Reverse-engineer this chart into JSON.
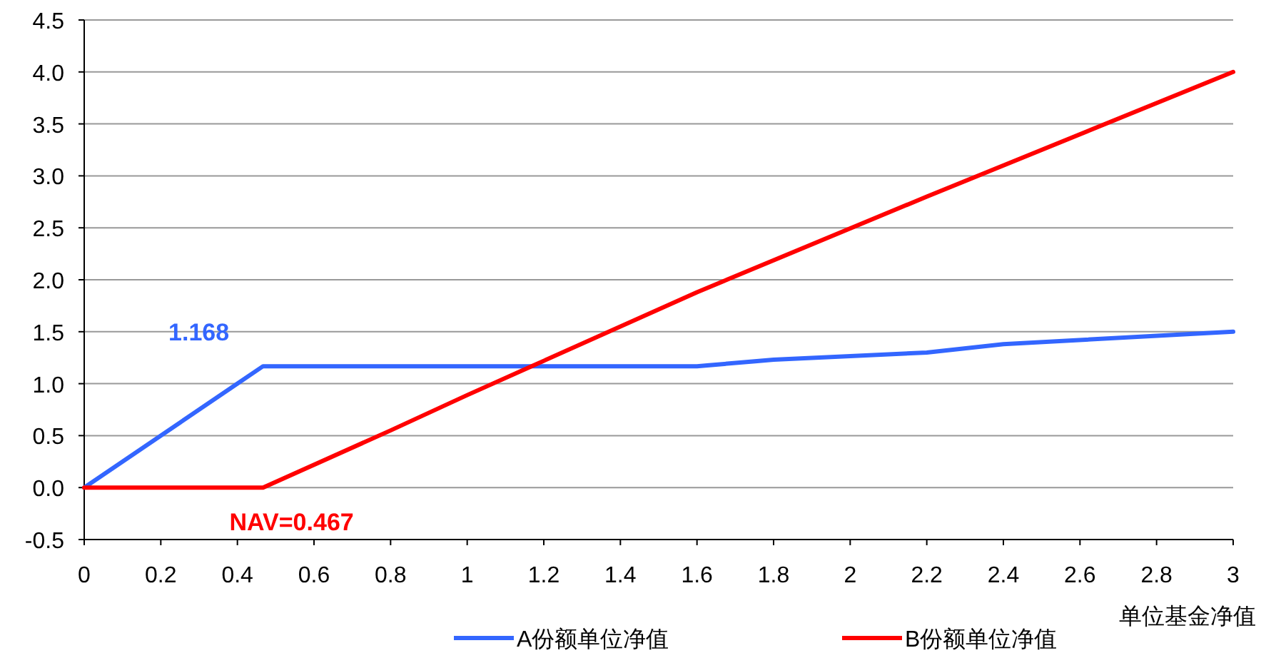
{
  "chart_data": {
    "type": "line",
    "xlabel": "单位基金净值",
    "xlim": [
      0,
      3
    ],
    "xticks": [
      0,
      0.2,
      0.4,
      0.6,
      0.8,
      1,
      1.2,
      1.4,
      1.6,
      1.8,
      2,
      2.2,
      2.4,
      2.6,
      2.8,
      3
    ],
    "ylim": [
      -0.5,
      4.5
    ],
    "yticks": [
      -0.5,
      {
        "value": 0,
        "label": "0.0"
      },
      0.5,
      {
        "value": 1,
        "label": "1.0"
      },
      1.5,
      {
        "value": 2,
        "label": "2.0"
      },
      2.5,
      {
        "value": 3,
        "label": "3.0"
      },
      3.5,
      {
        "value": 4,
        "label": "4.0"
      },
      4.5
    ],
    "grid": "y",
    "legend": "bottom",
    "series": [
      {
        "name": "A份额单位净值",
        "color": "#3366ff",
        "x": [
          0,
          0.4,
          0.467,
          1.6,
          1.8,
          2.2,
          2.4,
          3
        ],
        "values": [
          0,
          1.0,
          1.168,
          1.168,
          1.23,
          1.3,
          1.38,
          1.5
        ]
      },
      {
        "name": "B份额单位净值",
        "color": "#ff0000",
        "x": [
          0,
          0.467,
          0.8,
          1.0,
          1.6,
          2.2,
          3
        ],
        "values": [
          0,
          0,
          0.55,
          0.89,
          1.88,
          2.8,
          4.0
        ]
      }
    ],
    "annotations": [
      {
        "text": "1.168",
        "x": 0.467,
        "y": 1.168
      },
      {
        "text": "NAV=0.467",
        "x": 0.467,
        "y": 0
      }
    ]
  }
}
